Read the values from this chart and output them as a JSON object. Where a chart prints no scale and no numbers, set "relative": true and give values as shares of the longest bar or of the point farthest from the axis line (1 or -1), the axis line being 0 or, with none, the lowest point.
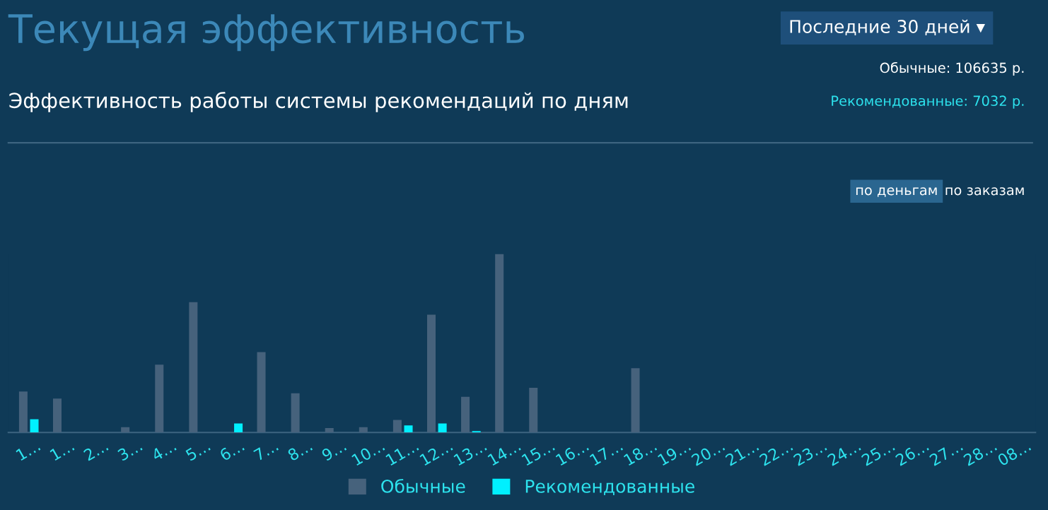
{
  "chart_data": {
    "type": "bar",
    "title": "Текущая эффективность",
    "subtitle": "Эффективность работы системы рекомендаций по дням",
    "annotations": [
      "Последние 30 дней ▾",
      "Обычные: 106635 р.",
      "Рекомендованные: 7032 р.",
      "по деньгам",
      "по заказам"
    ],
    "categories": [
      "1…",
      "1…",
      "2…",
      "3…",
      "4…",
      "5…",
      "6…",
      "7…",
      "8…",
      "9…",
      "10…",
      "11…",
      "12…",
      "13…",
      "14…",
      "15…",
      "16…",
      "17…",
      "18…",
      "19…",
      "20…",
      "21…",
      "22…",
      "23…",
      "24…",
      "25…",
      "26…",
      "27…",
      "28…",
      "08…"
    ],
    "series": [
      {
        "name": "Обычные",
        "color": "#46627c",
        "values": [
          0.23,
          0.19,
          0,
          0.03,
          0.38,
          0.73,
          0,
          0.45,
          0.22,
          0.025,
          0.03,
          0.07,
          0.66,
          0.2,
          1,
          0.25,
          0,
          0,
          0.36,
          0,
          0,
          0,
          0,
          0,
          0,
          0,
          0,
          0,
          0,
          0
        ]
      },
      {
        "name": "Рекомендованные",
        "color": "#00f0ff",
        "values": [
          0.074,
          0,
          0,
          0,
          0,
          0,
          0.05,
          0,
          0,
          0,
          0,
          0.04,
          0.05,
          0.008,
          0,
          0,
          0,
          0,
          0,
          0,
          0,
          0,
          0,
          0,
          0,
          0,
          0,
          0,
          0,
          0
        ]
      }
    ],
    "relative": true,
    "legend": "bottom",
    "grid": false
  }
}
